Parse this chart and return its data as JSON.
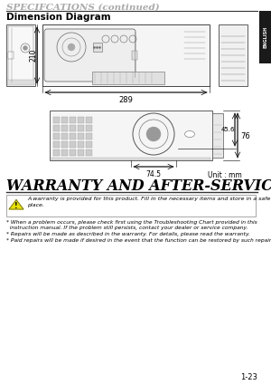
{
  "title": "SPECIFCATIONS (continued)",
  "section1": "Dimension Diagram",
  "section2": "WARRANTY AND AFTER-SERVICE",
  "dim_289": "289",
  "dim_210": "210",
  "dim_76": "76",
  "dim_45_6": "45.6",
  "dim_74_5": "74.5",
  "unit_label": "Unit : mm",
  "page_num": "1-23",
  "english_tab": "ENGLISH",
  "warranty_box_text1": "A warranty is provided for this product. Fill in the necessary items and store in a safe",
  "warranty_box_text2": "place.",
  "bullet1a": "* When a problem occurs, please check first using the Troubleshooting Chart provided in this",
  "bullet1b": "  instruction manual. If the problem still persists, contact your dealer or service company.",
  "bullet2": "* Repairs will be made as described in the warranty. For details, please read the warranty.",
  "bullet3": "* Paid repairs will be made if desired in the event that the function can be restored by such repairs.",
  "bg_color": "#ffffff",
  "text_color": "#000000",
  "tab_color": "#1a1a1a"
}
